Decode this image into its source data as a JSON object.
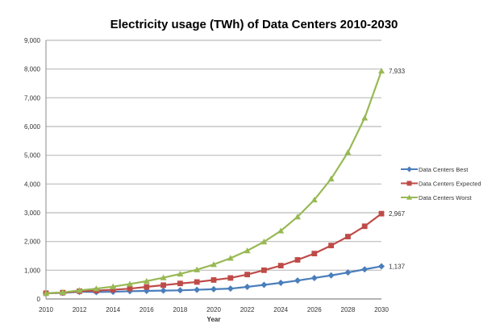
{
  "chart_data": {
    "type": "line",
    "title": "Electricity usage (TWh) of Data Centers 2010-2030",
    "xlabel": "Year",
    "ylabel": "",
    "ylim": [
      0,
      9000
    ],
    "yticks": [
      "0",
      "1,000",
      "2,000",
      "3,000",
      "4,000",
      "5,000",
      "6,000",
      "7,000",
      "8,000",
      "9,000"
    ],
    "xticks": [
      "2010",
      "2012",
      "2014",
      "2016",
      "2018",
      "2020",
      "2022",
      "2024",
      "2026",
      "2028",
      "2030"
    ],
    "grid": true,
    "legend_position": "right",
    "x": [
      2010,
      2011,
      2012,
      2013,
      2014,
      2015,
      2016,
      2017,
      2018,
      2019,
      2020,
      2021,
      2022,
      2023,
      2024,
      2025,
      2026,
      2027,
      2028,
      2029,
      2030
    ],
    "series": [
      {
        "name": "Data Centers Best",
        "color": "#4a7ebb",
        "marker": "diamond",
        "end_label": "1,137",
        "values": [
          200,
          210,
          250,
          240,
          250,
          270,
          280,
          290,
          300,
          320,
          340,
          360,
          420,
          490,
          560,
          640,
          730,
          820,
          920,
          1030,
          1137
        ]
      },
      {
        "name": "Data Centers Expected",
        "color": "#be4b48",
        "marker": "square",
        "end_label": "2,967",
        "values": [
          200,
          220,
          270,
          290,
          320,
          360,
          420,
          480,
          540,
          590,
          660,
          730,
          850,
          1000,
          1160,
          1360,
          1580,
          1860,
          2170,
          2530,
          2967
        ]
      },
      {
        "name": "Data Centers Worst",
        "color": "#98b954",
        "marker": "triangle",
        "end_label": "7,933",
        "values": [
          200,
          230,
          300,
          360,
          430,
          520,
          620,
          740,
          870,
          1020,
          1200,
          1420,
          1680,
          1990,
          2370,
          2860,
          3450,
          4180,
          5100,
          6300,
          7933
        ]
      }
    ]
  }
}
